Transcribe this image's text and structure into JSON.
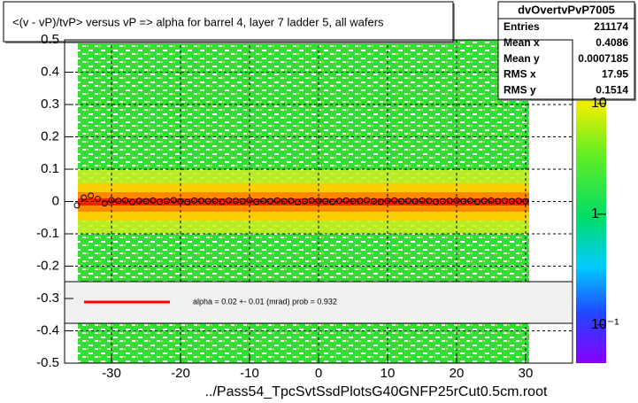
{
  "chart_data": {
    "type": "profile",
    "title": "<(v - vP)/tvP> versus   vP => alpha for barrel 4, layer 7 ladder 5, all wafers",
    "xlabel": "../Pass54_TpcSvtSsdPlotsG40GNFP25rCut0.5cm.root",
    "xlim": [
      -36.8,
      36.8
    ],
    "ylim": [
      -0.5,
      0.5
    ],
    "xticks": [
      -30,
      -20,
      -10,
      0,
      10,
      20,
      30
    ],
    "yticks": [
      -0.5,
      -0.4,
      -0.3,
      -0.2,
      -0.1,
      0,
      0.1,
      0.2,
      0.3,
      0.4,
      0.5
    ],
    "grid": true,
    "color": "#000000",
    "x": [
      -35,
      -34,
      -33,
      -32,
      -31,
      -30,
      -29,
      -28,
      -27,
      -26,
      -25,
      -24,
      -23,
      -22,
      -21,
      -20,
      -19,
      -18,
      -17,
      -16,
      -15,
      -14,
      -13,
      -12,
      -11,
      -10,
      -9,
      -8,
      -7,
      -6,
      -5,
      -4,
      -3,
      -2,
      -1,
      0,
      1,
      2,
      3,
      4,
      5,
      6,
      7,
      8,
      9,
      10,
      11,
      12,
      13,
      14,
      15,
      16,
      17,
      18,
      19,
      20,
      21,
      22,
      23,
      24,
      25,
      26,
      27,
      28,
      29,
      30
    ],
    "values": [
      -0.012,
      0.012,
      0.018,
      0.008,
      -0.006,
      0.004,
      0.002,
      0.003,
      -0.002,
      0.002,
      0.001,
      0.003,
      -0.001,
      0.002,
      0.004,
      0.001,
      -0.002,
      0.003,
      0.002,
      0.001,
      0.002,
      -0.001,
      0.003,
      0.002,
      0.001,
      0.004,
      -0.001,
      0.002,
      0.001,
      0.003,
      0.001,
      0.002,
      -0.002,
      0.001,
      0.003,
      0.002,
      0.001,
      -0.001,
      0.002,
      0.003,
      0.001,
      0.002,
      0.004,
      0.001,
      -0.001,
      0.002,
      0.003,
      0.001,
      0.002,
      0.001,
      0.003,
      0.002,
      -0.001,
      0.001,
      0.002,
      0.003,
      0.001,
      0.002,
      -0.001,
      0.002,
      0.003,
      0.001,
      0.002,
      0.001,
      0.002,
      0.001
    ],
    "colorbar": {
      "log": true,
      "zlim": [
        0.045,
        37.7
      ],
      "zticks": [
        {
          "value": 0.1,
          "label": "10⁻¹"
        },
        1,
        10
      ]
    },
    "fit": {
      "label": "alpha =     0.02 +-  0.01 (mrad) prob = 0.932",
      "color": "#ff0000"
    },
    "stats": {
      "title": "dvOvertvPvP7005",
      "rows": [
        [
          "Entries",
          "211174"
        ],
        [
          "Mean x",
          "0.4086"
        ],
        [
          "Mean y",
          "0.0007185"
        ],
        [
          "RMS x",
          "17.95"
        ],
        [
          "RMS y",
          "0.1514"
        ]
      ]
    }
  }
}
